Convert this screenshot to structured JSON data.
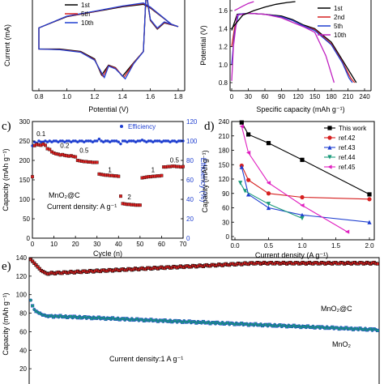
{
  "chart_data": [
    {
      "panel": "a",
      "type": "line",
      "ylabel": "Current (mA)",
      "xlabel": "Potential (V)",
      "xlim": [
        0.8,
        1.8
      ],
      "xticks": [
        "0.8",
        "1.0",
        "1.2",
        "1.4",
        "1.6",
        "1.8"
      ],
      "ylim": [
        -2.5,
        2.0
      ],
      "legend": [
        "1st",
        "5th",
        "10th"
      ],
      "series": [
        {
          "name": "1st",
          "color": "#000000",
          "x": [
            0.8,
            0.95,
            1.1,
            1.2,
            1.25,
            1.3,
            1.35,
            1.4,
            1.48,
            1.55,
            1.57,
            1.6,
            1.65,
            1.7,
            1.8,
            1.75,
            1.6,
            1.55,
            1.4,
            1.2,
            1.0,
            0.8
          ],
          "y": [
            -0.95,
            -0.95,
            -1.05,
            -1.35,
            -2.0,
            -1.6,
            -1.7,
            -2.05,
            -1.5,
            -1.05,
            1.3,
            0.2,
            -0.15,
            0.1,
            -0.05,
            0.05,
            0.7,
            0.85,
            0.75,
            0.55,
            0.35,
            -0.1
          ]
        },
        {
          "name": "5th",
          "color": "#d62020",
          "x": [
            0.8,
            0.95,
            1.1,
            1.2,
            1.26,
            1.3,
            1.35,
            1.41,
            1.48,
            1.55,
            1.57,
            1.6,
            1.65,
            1.7,
            1.8,
            1.75,
            1.6,
            1.55,
            1.4,
            1.2,
            1.0,
            0.8
          ],
          "y": [
            -0.95,
            -0.97,
            -1.07,
            -1.38,
            -2.05,
            -1.62,
            -1.72,
            -2.1,
            -1.52,
            -1.05,
            1.35,
            0.22,
            -0.13,
            0.12,
            -0.05,
            0.05,
            0.72,
            0.88,
            0.77,
            0.56,
            0.36,
            -0.1
          ]
        },
        {
          "name": "10th",
          "color": "#1f3fd0",
          "x": [
            0.8,
            0.95,
            1.1,
            1.2,
            1.27,
            1.3,
            1.35,
            1.42,
            1.48,
            1.55,
            1.57,
            1.6,
            1.65,
            1.7,
            1.8,
            1.75,
            1.6,
            1.55,
            1.4,
            1.2,
            1.0,
            0.8
          ],
          "y": [
            -0.95,
            -0.98,
            -1.08,
            -1.4,
            -2.1,
            -1.64,
            -1.75,
            -2.15,
            -1.54,
            -1.06,
            1.4,
            0.24,
            -0.11,
            0.14,
            -0.05,
            0.05,
            0.74,
            0.9,
            0.78,
            0.57,
            0.37,
            -0.1
          ]
        }
      ]
    },
    {
      "panel": "b",
      "type": "line",
      "ylabel": "Potential (V)",
      "xlabel": "Specific capacity (mAh g⁻¹)",
      "xlim": [
        0,
        240
      ],
      "xticks": [
        "0",
        "30",
        "60",
        "90",
        "120",
        "150",
        "180",
        "210",
        "240"
      ],
      "ylim": [
        0.8,
        1.7
      ],
      "yticks": [
        "0.8",
        "1.0",
        "1.2",
        "1.4",
        "1.6"
      ],
      "legend": [
        "1st",
        "2nd",
        "5th",
        "10th"
      ],
      "series": [
        {
          "name": "1st",
          "color": "#000000",
          "x": [
            0,
            5,
            10,
            30,
            60,
            90,
            110,
            130,
            150,
            180,
            200,
            220,
            225
          ],
          "y": [
            1.38,
            1.47,
            1.56,
            1.57,
            1.56,
            1.54,
            1.5,
            1.44,
            1.4,
            1.25,
            1.05,
            0.85,
            0.8
          ]
        },
        {
          "name": "2nd",
          "color": "#d62020",
          "x": [
            0,
            5,
            12,
            30,
            60,
            90,
            110,
            130,
            150,
            180,
            200,
            215,
            222
          ],
          "y": [
            1.2,
            1.4,
            1.56,
            1.57,
            1.56,
            1.53,
            1.49,
            1.43,
            1.39,
            1.23,
            1.03,
            0.85,
            0.8
          ]
        },
        {
          "name": "5th",
          "color": "#1f3fd0",
          "x": [
            0,
            5,
            12,
            30,
            60,
            90,
            110,
            130,
            150,
            180,
            200,
            212,
            218
          ],
          "y": [
            1.0,
            1.35,
            1.56,
            1.57,
            1.56,
            1.53,
            1.49,
            1.43,
            1.38,
            1.22,
            1.02,
            0.85,
            0.8
          ]
        },
        {
          "name": "10th",
          "color": "#c020c0",
          "x": [
            0,
            3,
            10,
            30,
            60,
            90,
            110,
            130,
            150,
            170,
            180,
            185
          ],
          "y": [
            0.82,
            1.2,
            1.55,
            1.57,
            1.56,
            1.52,
            1.47,
            1.42,
            1.36,
            1.1,
            0.9,
            0.8
          ]
        },
        {
          "name": "1st-charge",
          "color": "#000000",
          "x": [
            0,
            20,
            40,
            60,
            80,
            100,
            115
          ],
          "y": [
            1.4,
            1.55,
            1.6,
            1.64,
            1.67,
            1.69,
            1.7
          ]
        },
        {
          "name": "10th-charge",
          "color": "#c020c0",
          "x": [
            5,
            20,
            30,
            40
          ],
          "y": [
            1.6,
            1.65,
            1.68,
            1.7
          ]
        }
      ]
    },
    {
      "panel": "c",
      "type": "scatter",
      "ylabel": "Capacity (mAh g⁻¹)",
      "y2label": "Efficiency (%)",
      "xlabel": "Cycle (n)",
      "xlim": [
        0,
        70
      ],
      "xticks": [
        "0",
        "10",
        "20",
        "30",
        "40",
        "50",
        "60",
        "70"
      ],
      "ylim": [
        0,
        300
      ],
      "yticks": [
        "0",
        "50",
        "100",
        "150",
        "200",
        "250",
        "300"
      ],
      "y2lim": [
        0,
        120
      ],
      "y2ticks": [
        "0",
        "20",
        "40",
        "60",
        "80",
        "100",
        "120"
      ],
      "legend": [
        "Efficiency"
      ],
      "material": "MnO₂@C",
      "current_label": "Current density: A g⁻¹",
      "rate_labels": [
        {
          "text": "0.1",
          "x": 4,
          "y": 262
        },
        {
          "text": "0.2",
          "x": 15,
          "y": 232
        },
        {
          "text": "0.5",
          "x": 24,
          "y": 220
        },
        {
          "text": "1",
          "x": 36,
          "y": 170
        },
        {
          "text": "2",
          "x": 45,
          "y": 100
        },
        {
          "text": "1",
          "x": 56,
          "y": 170
        },
        {
          "text": "0.5",
          "x": 66,
          "y": 195
        }
      ],
      "capacity": {
        "color": "#d62020",
        "values": [
          158,
          238,
          241,
          240,
          239,
          242,
          239,
          230,
          228,
          222,
          219,
          217,
          216,
          214,
          215,
          213,
          212,
          211,
          212,
          210,
          209,
          200,
          199,
          198,
          197,
          197,
          196,
          196,
          195,
          195,
          195,
          165,
          164,
          163,
          162,
          162,
          161,
          161,
          160,
          160,
          159,
          108,
          89,
          88,
          87,
          87,
          86,
          86,
          85,
          85,
          85,
          155,
          156,
          157,
          158,
          158,
          159,
          159,
          160,
          160,
          161,
          183,
          183,
          184,
          184,
          185,
          185,
          184,
          184,
          183,
          184
        ]
      },
      "efficiency": {
        "color": "#1f3fd0",
        "values": [
          95,
          99,
          98,
          100,
          99,
          99,
          100,
          99,
          100,
          99,
          100,
          100,
          99,
          100,
          100,
          99,
          100,
          100,
          99,
          100,
          100,
          99,
          100,
          100,
          99,
          100,
          100,
          100,
          99,
          100,
          100,
          102,
          100,
          99,
          100,
          100,
          99,
          100,
          100,
          100,
          99,
          97,
          100,
          100,
          99,
          100,
          100,
          100,
          99,
          100,
          100,
          101,
          100,
          99,
          100,
          100,
          99,
          100,
          100,
          100,
          99,
          100,
          100,
          100,
          99,
          100,
          100,
          99,
          100,
          100,
          100
        ]
      }
    },
    {
      "panel": "d",
      "type": "line",
      "ylabel": "Capacity (mAh g⁻¹)",
      "xlabel": "Current density (A g⁻¹)",
      "xlim": [
        0,
        2.0
      ],
      "xticks": [
        "0.0",
        "0.5",
        "1.0",
        "1.5",
        "2.0"
      ],
      "ylim": [
        0,
        240
      ],
      "yticks": [
        "0",
        "30",
        "60",
        "90",
        "120",
        "150",
        "180",
        "210",
        "240"
      ],
      "series": [
        {
          "name": "This work",
          "color": "#000000",
          "marker": "square",
          "x": [
            0.1,
            0.2,
            0.5,
            1.0,
            2.0
          ],
          "y": [
            238,
            213,
            195,
            160,
            88
          ]
        },
        {
          "name": "ref.42",
          "color": "#d62020",
          "marker": "circle",
          "x": [
            0.1,
            0.2,
            0.5,
            1.0,
            2.0
          ],
          "y": [
            148,
            118,
            90,
            82,
            78
          ]
        },
        {
          "name": "ref.43",
          "color": "#1f3fd0",
          "marker": "triangle-up",
          "x": [
            0.1,
            0.2,
            0.5,
            1.0,
            2.0
          ],
          "y": [
            145,
            88,
            60,
            45,
            30
          ]
        },
        {
          "name": "ref.44",
          "color": "#1a9a7a",
          "marker": "triangle-down",
          "x": [
            0.08,
            0.15,
            0.5,
            1.0
          ],
          "y": [
            112,
            95,
            68,
            38
          ]
        },
        {
          "name": "ref.45",
          "color": "#e020c0",
          "marker": "triangle-left",
          "x": [
            0.1,
            0.2,
            0.5,
            1.0,
            1.67
          ],
          "y": [
            230,
            175,
            112,
            65,
            10
          ]
        }
      ]
    },
    {
      "panel": "e",
      "type": "scatter",
      "ylabel": "Capacity (mAh g⁻¹)",
      "xlim": [
        0,
        1000
      ],
      "ylim": [
        0,
        140
      ],
      "yticks": [
        "0",
        "20",
        "40",
        "60",
        "80",
        "100",
        "120",
        "140"
      ],
      "current_label": "Current density:1 A g⁻¹",
      "series": [
        {
          "name": "MnO₂@C",
          "color": "#d62020",
          "edge": "#000000",
          "start": [
            138,
            136,
            134,
            132,
            130,
            128,
            126,
            125,
            124,
            123
          ],
          "plateau": 134
        },
        {
          "name": "MnO₂",
          "color": "#1a9a7a",
          "edge": "#1f3fd0",
          "start": [
            94,
            88,
            84,
            82,
            81,
            80,
            79,
            78,
            78,
            77
          ],
          "plateau": 62
        }
      ]
    }
  ]
}
